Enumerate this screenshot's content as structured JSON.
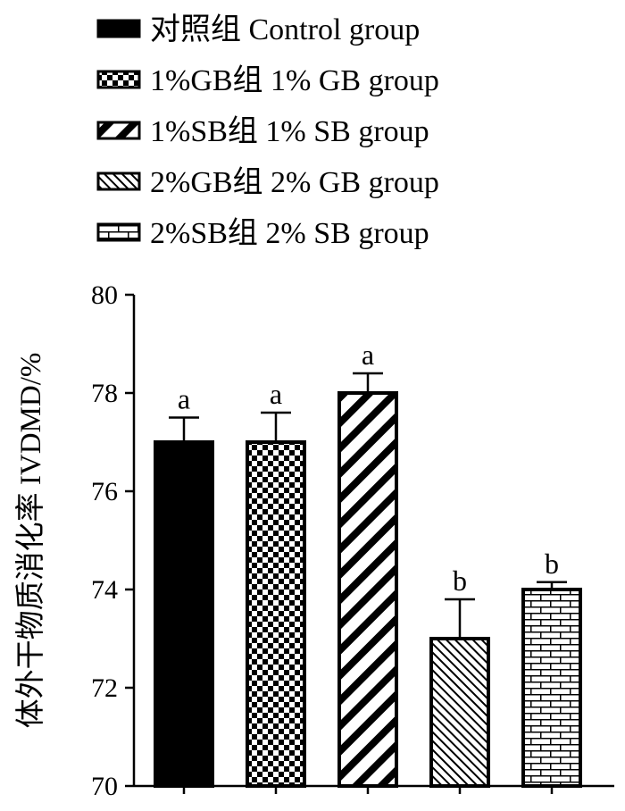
{
  "chart_data": {
    "type": "bar",
    "ylabel": "体外干物质消化率 IVDMD/%",
    "ylim": [
      70,
      80
    ],
    "yticks": [
      70,
      72,
      74,
      76,
      78,
      80
    ],
    "grid": false,
    "legend_position": "top-left",
    "series": [
      {
        "name": "对照组  Control group",
        "value": 77.0,
        "error": 0.5,
        "label": "a",
        "pattern": "solid"
      },
      {
        "name": "1%GB组  1% GB group",
        "value": 77.0,
        "error": 0.6,
        "label": "a",
        "pattern": "checker"
      },
      {
        "name": "1%SB组  1% SB group",
        "value": 78.0,
        "error": 0.4,
        "label": "a",
        "pattern": "diagonal-up"
      },
      {
        "name": "2%GB组  2% GB group",
        "value": 73.0,
        "error": 0.8,
        "label": "b",
        "pattern": "diagonal-down"
      },
      {
        "name": "2%SB组  2% SB group",
        "value": 74.0,
        "error": 0.15,
        "label": "b",
        "pattern": "brick"
      }
    ],
    "colors": {
      "bar_stroke": "#000000",
      "fill": "#000000",
      "background": "#ffffff"
    }
  }
}
